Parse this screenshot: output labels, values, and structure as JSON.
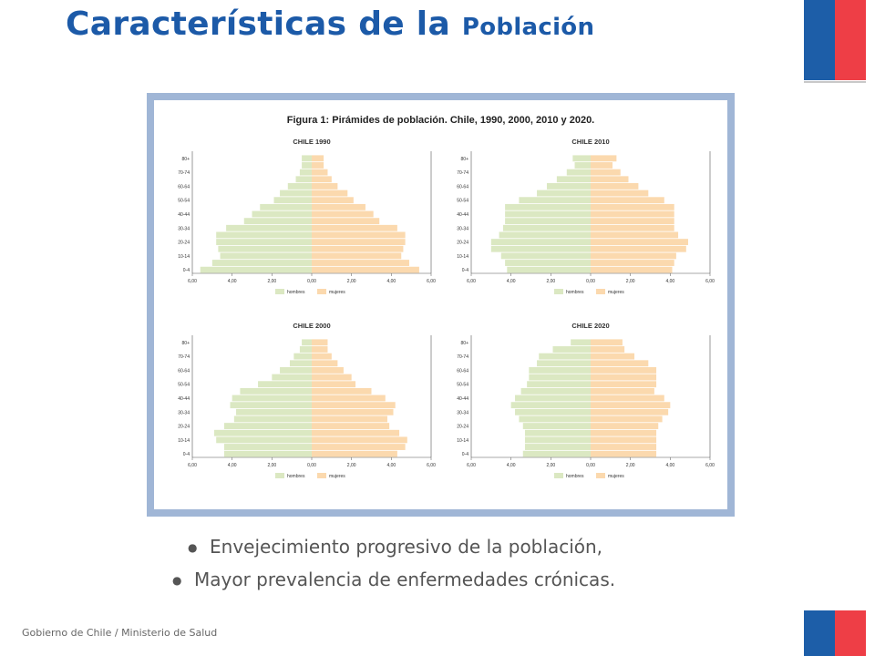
{
  "slide": {
    "title_main": "Características de la",
    "title_small": "Población",
    "footer": "Gobierno de Chile / Ministerio de Salud"
  },
  "bullets": [
    "Envejecimiento progresivo de la población,",
    "Mayor prevalencia de enfermedades crónicas."
  ],
  "colors": {
    "title": "#1c5aa8",
    "frame": "#a0b6d6",
    "hombres": "#dbe8c2",
    "mujeres": "#fbd9ae",
    "flag_blue": "#1d5ea8",
    "flag_red": "#ee3e46"
  },
  "figure_title": "Figura 1: Pirámides de población. Chile, 1990, 2000, 2010 y 2020.",
  "chart_data": [
    {
      "type": "bar",
      "title": "CHILE 1990",
      "categories": [
        "0-4",
        "5-9",
        "10-14",
        "15-19",
        "20-24",
        "25-29",
        "30-34",
        "35-39",
        "40-44",
        "45-49",
        "50-54",
        "55-59",
        "60-64",
        "65-69",
        "70-74",
        "75-79",
        "80+"
      ],
      "y_tick_labels": [
        "0-4",
        "10-14",
        "20-24",
        "30-34",
        "40-44",
        "50-54",
        "60-64",
        "70-74",
        "80+"
      ],
      "x_tick_labels": [
        "6,00",
        "4,00",
        "2,00",
        "0,00",
        "2,00",
        "4,00",
        "6,00"
      ],
      "xlim": [
        -6,
        6
      ],
      "series": [
        {
          "name": "hombres",
          "values": [
            5.6,
            5.0,
            4.6,
            4.7,
            4.8,
            4.8,
            4.3,
            3.4,
            3.0,
            2.6,
            1.9,
            1.6,
            1.2,
            0.8,
            0.6,
            0.5,
            0.5
          ]
        },
        {
          "name": "mujeres",
          "values": [
            5.4,
            4.9,
            4.5,
            4.6,
            4.7,
            4.7,
            4.3,
            3.4,
            3.1,
            2.7,
            2.1,
            1.8,
            1.3,
            1.0,
            0.8,
            0.6,
            0.6
          ]
        }
      ]
    },
    {
      "type": "bar",
      "title": "CHILE 2010",
      "categories": [
        "0-4",
        "5-9",
        "10-14",
        "15-19",
        "20-24",
        "25-29",
        "30-34",
        "35-39",
        "40-44",
        "45-49",
        "50-54",
        "55-59",
        "60-64",
        "65-69",
        "70-74",
        "75-79",
        "80+"
      ],
      "y_tick_labels": [
        "0-4",
        "10-14",
        "20-24",
        "30-34",
        "40-44",
        "50-54",
        "60-64",
        "70-74",
        "80+"
      ],
      "x_tick_labels": [
        "6,00",
        "4,00",
        "2,00",
        "0,00",
        "2,00",
        "4,00",
        "6,00"
      ],
      "xlim": [
        -6,
        6
      ],
      "series": [
        {
          "name": "hombres",
          "values": [
            4.2,
            4.3,
            4.5,
            5.0,
            5.0,
            4.6,
            4.4,
            4.3,
            4.3,
            4.3,
            3.6,
            2.7,
            2.2,
            1.7,
            1.2,
            0.8,
            0.9
          ]
        },
        {
          "name": "mujeres",
          "values": [
            4.1,
            4.2,
            4.3,
            4.8,
            4.9,
            4.4,
            4.2,
            4.2,
            4.2,
            4.2,
            3.7,
            2.9,
            2.4,
            1.9,
            1.5,
            1.1,
            1.3
          ]
        }
      ]
    },
    {
      "type": "bar",
      "title": "CHILE 2000",
      "categories": [
        "0-4",
        "5-9",
        "10-14",
        "15-19",
        "20-24",
        "25-29",
        "30-34",
        "35-39",
        "40-44",
        "45-49",
        "50-54",
        "55-59",
        "60-64",
        "65-69",
        "70-74",
        "75-79",
        "80+"
      ],
      "y_tick_labels": [
        "0-4",
        "10-14",
        "20-24",
        "30-34",
        "40-44",
        "50-54",
        "60-64",
        "70-74",
        "80+"
      ],
      "x_tick_labels": [
        "6,00",
        "4,00",
        "2,00",
        "0,00",
        "2,00",
        "4,00",
        "6,00"
      ],
      "xlim": [
        -6,
        6
      ],
      "series": [
        {
          "name": "hombres",
          "values": [
            4.4,
            4.4,
            4.8,
            4.9,
            4.4,
            3.9,
            3.8,
            4.1,
            4.0,
            3.6,
            2.7,
            2.0,
            1.6,
            1.1,
            0.9,
            0.6,
            0.5
          ]
        },
        {
          "name": "mujeres",
          "values": [
            4.3,
            4.7,
            4.8,
            4.4,
            3.9,
            3.8,
            4.1,
            4.2,
            3.7,
            3.0,
            2.2,
            2.0,
            1.6,
            1.3,
            1.0,
            0.8,
            0.8
          ]
        }
      ]
    },
    {
      "type": "bar",
      "title": "CHILE 2020",
      "categories": [
        "0-4",
        "5-9",
        "10-14",
        "15-19",
        "20-24",
        "25-29",
        "30-34",
        "35-39",
        "40-44",
        "45-49",
        "50-54",
        "55-59",
        "60-64",
        "65-69",
        "70-74",
        "75-79",
        "80+"
      ],
      "y_tick_labels": [
        "0-4",
        "10-14",
        "20-24",
        "30-34",
        "40-44",
        "50-54",
        "60-64",
        "70-74",
        "80+"
      ],
      "x_tick_labels": [
        "6,00",
        "4,00",
        "2,00",
        "0,00",
        "2,00",
        "4,00",
        "6,00"
      ],
      "xlim": [
        -6,
        6
      ],
      "series": [
        {
          "name": "hombres",
          "values": [
            3.4,
            3.3,
            3.3,
            3.3,
            3.4,
            3.6,
            3.8,
            4.0,
            3.8,
            3.5,
            3.2,
            3.1,
            3.1,
            2.7,
            2.6,
            1.9,
            1.0
          ]
        },
        {
          "name": "mujeres",
          "values": [
            3.3,
            3.3,
            3.3,
            3.3,
            3.4,
            3.6,
            3.9,
            4.0,
            3.7,
            3.2,
            3.3,
            3.3,
            3.3,
            2.9,
            2.2,
            1.7,
            1.6
          ]
        }
      ]
    }
  ]
}
